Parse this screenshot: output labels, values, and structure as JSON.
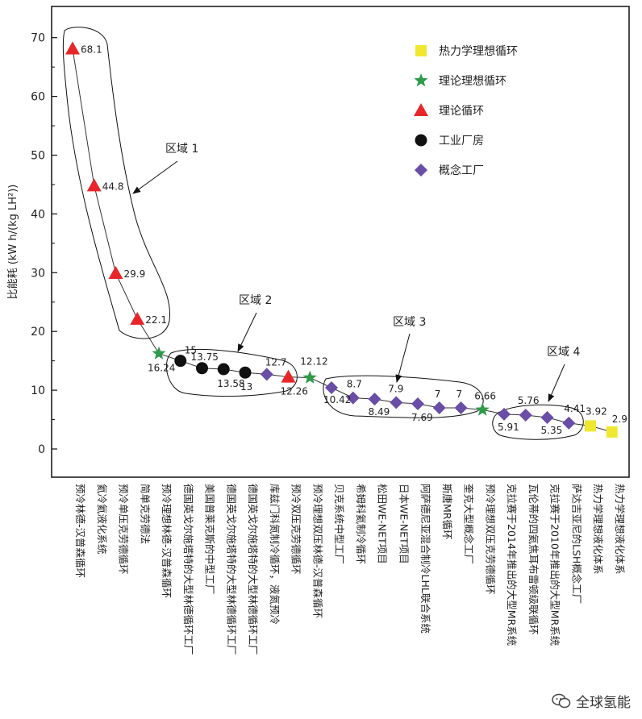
{
  "chart_data": {
    "type": "scatter",
    "xlabel": "",
    "ylabel": "比能耗 (kW h/(kg LH²))",
    "ylim": [
      -5,
      72
    ],
    "yticks": [
      0,
      10,
      20,
      30,
      40,
      50,
      60,
      70
    ],
    "grid": false,
    "legend_position": "top-right",
    "categories": [
      "预冷林德-汉普森循环",
      "氦冷氦液化系统",
      "预冷单压克劳德循环",
      "简单克劳德法",
      "预冷理想林德-汉普森循环",
      "德国英戈尔施塔特的大型林德循环工厂",
      "美国普莱克斯的中型工厂",
      "德国英戈尔施塔特的大型林德循环工厂",
      "德国英戈尔施塔特的大型林德循环工厂",
      "库兹门科氮制冷循环，液氮预冷",
      "预冷双压克劳德循环",
      "预冷理想双压林德-汉普森循环",
      "贝克系统中型工厂",
      "希姆科氦制冷循环",
      "松田WE-NET项目",
      "日本WE-NET项目",
      "阿萨德尼亚混合制冷LHL联合系统",
      "斯唐MR循环",
      "奎克大型概念工厂",
      "预冷理想双压克劳德循环",
      "克拉赛于2014年推出的大型MR系统",
      "瓦伦蒂的四氦焦耳布雷顿级联循环",
      "克拉赛于2010年推出的大型MR系统",
      "萨达吉亚尼的LSH概念工厂",
      "热力学理想液化体系",
      "热力学理想液化体系"
    ],
    "series": [
      {
        "name": "热力学理想循环",
        "marker": "square",
        "color": "#f0e830",
        "points": [
          [
            25,
            3.92
          ],
          [
            26,
            2.9
          ]
        ]
      },
      {
        "name": "理论理想循环",
        "marker": "star",
        "color": "#2e9a4a",
        "points": [
          [
            5,
            16.24
          ],
          [
            12,
            12.12
          ],
          [
            20,
            6.66
          ]
        ]
      },
      {
        "name": "理论循环",
        "marker": "triangle",
        "color": "#e8262a",
        "points": [
          [
            1,
            68.1
          ],
          [
            2,
            44.8
          ],
          [
            3,
            29.9
          ],
          [
            4,
            22.1
          ],
          [
            11,
            12.26
          ]
        ]
      },
      {
        "name": "工业厂房",
        "marker": "circle",
        "color": "#111111",
        "points": [
          [
            6,
            15
          ],
          [
            7,
            13.75
          ],
          [
            8,
            13.58
          ],
          [
            9,
            13
          ]
        ]
      },
      {
        "name": "概念工厂",
        "marker": "diamond",
        "color": "#6a4da6",
        "points": [
          [
            10,
            12.7
          ],
          [
            13,
            10.42
          ],
          [
            14,
            8.7
          ],
          [
            15,
            8.49
          ],
          [
            16,
            7.9
          ],
          [
            17,
            7.69
          ],
          [
            18,
            7
          ],
          [
            19,
            7
          ],
          [
            21,
            5.91
          ],
          [
            22,
            5.76
          ],
          [
            23,
            5.35
          ],
          [
            24,
            4.41
          ]
        ]
      }
    ],
    "data_labels": [
      "68.1",
      "44.8",
      "29.9",
      "22.1",
      "16.24",
      "15",
      "13.75",
      "13.58",
      "13",
      "12.7",
      "12.26",
      "12.12",
      "10.42",
      "8.7",
      "8.49",
      "7.9",
      "7.69",
      "7",
      "7",
      "6.66",
      "5.91",
      "5.76",
      "5.35",
      "4.41",
      "3.92",
      "2.9"
    ],
    "regions": [
      {
        "label": "区域 1",
        "from_index": 1,
        "to_index": 4
      },
      {
        "label": "区域 2",
        "from_index": 6,
        "to_index": 11
      },
      {
        "label": "区域 3",
        "from_index": 13,
        "to_index": 19
      },
      {
        "label": "区域 4",
        "from_index": 21,
        "to_index": 24
      }
    ]
  },
  "watermark": {
    "text": "全球氢能"
  }
}
